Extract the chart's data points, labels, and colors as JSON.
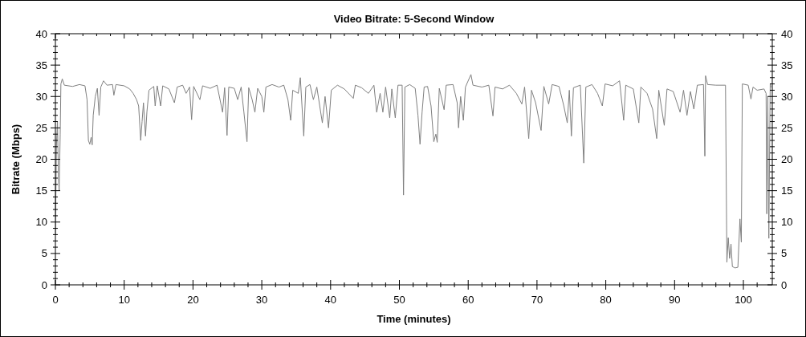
{
  "chart_data": {
    "type": "line",
    "title": "Video Bitrate: 5-Second Window",
    "xlabel": "Time (minutes)",
    "ylabel": "Bitrate (Mbps)",
    "xlim": [
      0,
      104.2
    ],
    "ylim": [
      0,
      40
    ],
    "y2lim": [
      0,
      40
    ],
    "xticks": [
      0,
      {
        "value": 2,
        "label": null
      },
      {
        "value": 4,
        "label": null
      },
      {
        "value": 6,
        "label": null
      },
      {
        "value": 8,
        "label": null
      },
      10,
      {
        "value": 12,
        "label": null
      },
      {
        "value": 14,
        "label": null
      },
      {
        "value": 16,
        "label": null
      },
      {
        "value": 18,
        "label": null
      },
      20,
      {
        "value": 22,
        "label": null
      },
      {
        "value": 24,
        "label": null
      },
      {
        "value": 26,
        "label": null
      },
      {
        "value": 28,
        "label": null
      },
      30,
      {
        "value": 32,
        "label": null
      },
      {
        "value": 34,
        "label": null
      },
      {
        "value": 36,
        "label": null
      },
      {
        "value": 38,
        "label": null
      },
      40,
      {
        "value": 42,
        "label": null
      },
      {
        "value": 44,
        "label": null
      },
      {
        "value": 46,
        "label": null
      },
      {
        "value": 48,
        "label": null
      },
      50,
      {
        "value": 52,
        "label": null
      },
      {
        "value": 54,
        "label": null
      },
      {
        "value": 56,
        "label": null
      },
      {
        "value": 58,
        "label": null
      },
      60,
      {
        "value": 62,
        "label": null
      },
      {
        "value": 64,
        "label": null
      },
      {
        "value": 66,
        "label": null
      },
      {
        "value": 68,
        "label": null
      },
      70,
      {
        "value": 72,
        "label": null
      },
      {
        "value": 74,
        "label": null
      },
      {
        "value": 76,
        "label": null
      },
      {
        "value": 78,
        "label": null
      },
      80,
      {
        "value": 82,
        "label": null
      },
      {
        "value": 84,
        "label": null
      },
      {
        "value": 86,
        "label": null
      },
      {
        "value": 88,
        "label": null
      },
      90,
      {
        "value": 92,
        "label": null
      },
      {
        "value": 94,
        "label": null
      },
      {
        "value": 96,
        "label": null
      },
      {
        "value": 98,
        "label": null
      },
      100,
      {
        "value": 102,
        "label": null
      }
    ],
    "yticks": [
      0,
      {
        "value": 1,
        "label": null
      },
      {
        "value": 2,
        "label": null
      },
      {
        "value": 3,
        "label": null
      },
      {
        "value": 4,
        "label": null
      },
      5,
      {
        "value": 6,
        "label": null
      },
      {
        "value": 7,
        "label": null
      },
      {
        "value": 8,
        "label": null
      },
      {
        "value": 9,
        "label": null
      },
      10,
      {
        "value": 11,
        "label": null
      },
      {
        "value": 12,
        "label": null
      },
      {
        "value": 13,
        "label": null
      },
      {
        "value": 14,
        "label": null
      },
      15,
      {
        "value": 16,
        "label": null
      },
      {
        "value": 17,
        "label": null
      },
      {
        "value": 18,
        "label": null
      },
      {
        "value": 19,
        "label": null
      },
      20,
      {
        "value": 21,
        "label": null
      },
      {
        "value": 22,
        "label": null
      },
      {
        "value": 23,
        "label": null
      },
      {
        "value": 24,
        "label": null
      },
      25,
      {
        "value": 26,
        "label": null
      },
      {
        "value": 27,
        "label": null
      },
      {
        "value": 28,
        "label": null
      },
      {
        "value": 29,
        "label": null
      },
      30,
      {
        "value": 31,
        "label": null
      },
      {
        "value": 32,
        "label": null
      },
      {
        "value": 33,
        "label": null
      },
      {
        "value": 34,
        "label": null
      },
      35,
      {
        "value": 36,
        "label": null
      },
      {
        "value": 37,
        "label": null
      },
      {
        "value": 38,
        "label": null
      },
      {
        "value": 39,
        "label": null
      },
      40
    ],
    "y2ticks": [
      0,
      {
        "value": 1,
        "label": null
      },
      {
        "value": 2,
        "label": null
      },
      {
        "value": 3,
        "label": null
      },
      {
        "value": 4,
        "label": null
      },
      5,
      {
        "value": 6,
        "label": null
      },
      {
        "value": 7,
        "label": null
      },
      {
        "value": 8,
        "label": null
      },
      {
        "value": 9,
        "label": null
      },
      10,
      {
        "value": 11,
        "label": null
      },
      {
        "value": 12,
        "label": null
      },
      {
        "value": 13,
        "label": null
      },
      {
        "value": 14,
        "label": null
      },
      15,
      {
        "value": 16,
        "label": null
      },
      {
        "value": 17,
        "label": null
      },
      {
        "value": 18,
        "label": null
      },
      {
        "value": 19,
        "label": null
      },
      20,
      {
        "value": 21,
        "label": null
      },
      {
        "value": 22,
        "label": null
      },
      {
        "value": 23,
        "label": null
      },
      {
        "value": 24,
        "label": null
      },
      25,
      {
        "value": 26,
        "label": null
      },
      {
        "value": 27,
        "label": null
      },
      {
        "value": 28,
        "label": null
      },
      {
        "value": 29,
        "label": null
      },
      30,
      {
        "value": 31,
        "label": null
      },
      {
        "value": 32,
        "label": null
      },
      {
        "value": 33,
        "label": null
      },
      {
        "value": 34,
        "label": null
      },
      35,
      {
        "value": 36,
        "label": null
      },
      {
        "value": 37,
        "label": null
      },
      {
        "value": 38,
        "label": null
      },
      {
        "value": 39,
        "label": null
      },
      40
    ],
    "series": [
      {
        "color": "#808080",
        "x": [
          0,
          0.15,
          0.3,
          0.45,
          0.55,
          0.7,
          0.8,
          1.0,
          1.3,
          2.5,
          3.5,
          4.3,
          4.6,
          4.8,
          5.0,
          5.2,
          5.35,
          5.5,
          5.8,
          6.1,
          6.35,
          6.6,
          7.0,
          7.5,
          8.3,
          8.5,
          8.8,
          10.0,
          10.8,
          11.3,
          11.8,
          12.1,
          12.4,
          12.6,
          12.8,
          13.1,
          13.3,
          13.6,
          14.3,
          14.5,
          14.8,
          15.3,
          15.6,
          16.5,
          17.3,
          17.7,
          18.5,
          19.0,
          19.5,
          19.8,
          20.1,
          21.0,
          21.4,
          22.5,
          23.5,
          24.3,
          24.6,
          24.95,
          25.2,
          26.0,
          26.5,
          27.0,
          27.4,
          27.85,
          28.1,
          28.6,
          29.0,
          29.4,
          30.0,
          30.3,
          30.6,
          31.5,
          32.5,
          33.2,
          33.8,
          34.2,
          34.5,
          35.3,
          35.6,
          36.1,
          36.4,
          37.0,
          37.5,
          38.0,
          38.8,
          39.2,
          39.7,
          40.1,
          41.0,
          42.0,
          43.3,
          43.6,
          44.5,
          45.5,
          46.3,
          46.7,
          47.2,
          47.6,
          48.0,
          48.6,
          48.9,
          49.4,
          49.8,
          50.4,
          50.6,
          50.8,
          51.5,
          52.3,
          52.7,
          53.0,
          53.3,
          53.6,
          54.1,
          54.6,
          55.0,
          55.3,
          55.5,
          55.8,
          56.5,
          56.8,
          57.8,
          58.4,
          58.6,
          58.9,
          59.3,
          59.6,
          60.4,
          60.7,
          62.0,
          63.0,
          63.6,
          63.9,
          65.0,
          66.0,
          67.0,
          67.8,
          68.2,
          68.8,
          69.2,
          69.8,
          70.6,
          71.0,
          71.7,
          72.2,
          73.2,
          73.9,
          74.4,
          74.7,
          75.0,
          75.3,
          76.3,
          76.8,
          77.1,
          78.0,
          78.8,
          79.5,
          79.9,
          81.0,
          82.0,
          82.6,
          82.9,
          84.0,
          84.8,
          85.1,
          86.0,
          86.8,
          87.4,
          87.7,
          88.5,
          88.9,
          89.8,
          90.8,
          91.3,
          91.8,
          92.3,
          92.8,
          93.3,
          94.2,
          94.4,
          94.5,
          94.8,
          96.0,
          97.4,
          97.6,
          97.8,
          98.0,
          98.2,
          98.4,
          98.8,
          99.2,
          99.5,
          99.7,
          99.85,
          100.7,
          101.1,
          101.4,
          102.0,
          103.0,
          103.3,
          103.4,
          103.55,
          103.7,
          103.9,
          104.0
        ],
        "values": [
          8,
          22,
          26,
          17,
          15,
          24,
          32,
          32.8,
          31.8,
          31.6,
          31.9,
          31.7,
          29.5,
          23,
          22.4,
          23.5,
          22.3,
          27,
          30,
          31.3,
          27,
          31.5,
          32.5,
          31.8,
          31.9,
          30.2,
          31.9,
          31.7,
          31.2,
          30.5,
          29.5,
          28.5,
          23,
          26,
          29,
          23.7,
          27.5,
          31,
          31.6,
          28.5,
          31.7,
          28.5,
          31.7,
          31.2,
          29,
          31.5,
          31.8,
          30.5,
          31.5,
          26.3,
          31.6,
          29.5,
          31.7,
          31.3,
          31.8,
          27.5,
          31.4,
          23.8,
          31.5,
          31.3,
          29.5,
          31.5,
          27.5,
          22.8,
          31.4,
          29.5,
          27.5,
          31.3,
          30,
          27.5,
          31.5,
          31.9,
          31.5,
          31.8,
          29.5,
          26.2,
          31,
          30.5,
          33,
          23.7,
          31.5,
          31.9,
          29.5,
          31.5,
          25.8,
          30,
          25,
          31,
          31.8,
          31.2,
          29.7,
          31.8,
          31.4,
          30.5,
          31.8,
          27.5,
          30.5,
          27.5,
          31.5,
          26.6,
          31.2,
          26.6,
          31.8,
          31.8,
          14.3,
          31.5,
          31.9,
          31.3,
          27,
          22.4,
          27.5,
          31.5,
          31.6,
          28.5,
          22.8,
          24,
          22.7,
          31.3,
          27.9,
          31.8,
          31.9,
          29,
          25,
          30,
          26.2,
          31.5,
          33.5,
          31.8,
          31.5,
          31.8,
          26.9,
          31.5,
          31.2,
          31.8,
          30.5,
          28.8,
          31.5,
          23.3,
          31,
          29,
          24.6,
          31.6,
          28.8,
          31.9,
          31.6,
          28.5,
          25.8,
          31,
          23.7,
          31.4,
          31.8,
          19.4,
          31.5,
          31.9,
          30.5,
          28.5,
          32,
          31.7,
          32.5,
          26.2,
          31.8,
          31.2,
          25.8,
          31.5,
          30.5,
          28,
          23.3,
          31,
          25.4,
          31.2,
          30.8,
          27.5,
          31,
          27,
          30.8,
          28,
          31.8,
          31.9,
          20.5,
          33.3,
          31.9,
          31.8,
          31.8,
          3.6,
          7.5,
          4.2,
          6.5,
          2.9,
          2.7,
          2.8,
          10.5,
          6.8,
          32,
          31.8,
          29.6,
          31.5,
          31,
          31.2,
          30.5,
          11.3,
          30,
          7.4,
          32,
          31.5
        ]
      }
    ]
  }
}
